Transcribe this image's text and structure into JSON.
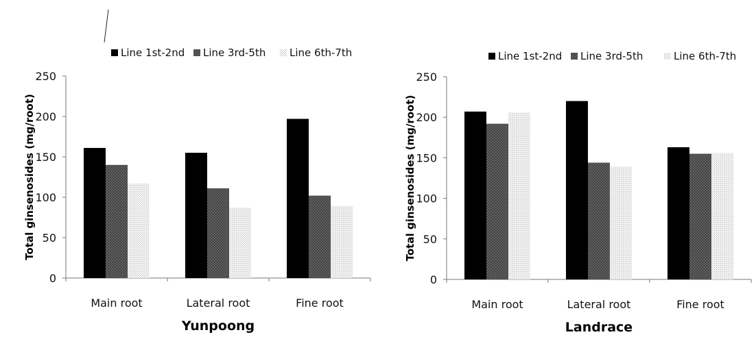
{
  "chart_data": [
    {
      "type": "bar",
      "title": "",
      "xlabel": "Yunpoong",
      "ylabel": "Total ginsenosides  (mg/root)",
      "ylim": [
        0,
        250
      ],
      "yticks": [
        0,
        50,
        100,
        150,
        200,
        250
      ],
      "grid": false,
      "legend_position": "top",
      "categories": [
        "Main root",
        "Lateral root",
        "Fine root"
      ],
      "series": [
        {
          "name": "Line 1st-2nd",
          "values": [
            161,
            155,
            197
          ],
          "color": "#000000"
        },
        {
          "name": "Line 3rd-5th",
          "values": [
            140,
            111,
            102
          ],
          "color": "#444444"
        },
        {
          "name": "Line 6th-7th",
          "values": [
            117,
            87,
            89
          ],
          "color": "#e4e4e4"
        }
      ]
    },
    {
      "type": "bar",
      "title": "",
      "xlabel": "Landrace",
      "ylabel": "Total ginsenosides  (mg/root)",
      "ylim": [
        0,
        250
      ],
      "yticks": [
        0,
        50,
        100,
        150,
        200,
        250
      ],
      "grid": false,
      "legend_position": "top",
      "categories": [
        "Main root",
        "Lateral root",
        "Fine root"
      ],
      "series": [
        {
          "name": "Line 1st-2nd",
          "values": [
            207,
            220,
            163
          ],
          "color": "#000000"
        },
        {
          "name": "Line 3rd-5th",
          "values": [
            192,
            144,
            155
          ],
          "color": "#444444"
        },
        {
          "name": "Line 6th-7th",
          "values": [
            206,
            139,
            156
          ],
          "color": "#e4e4e4"
        }
      ]
    }
  ]
}
